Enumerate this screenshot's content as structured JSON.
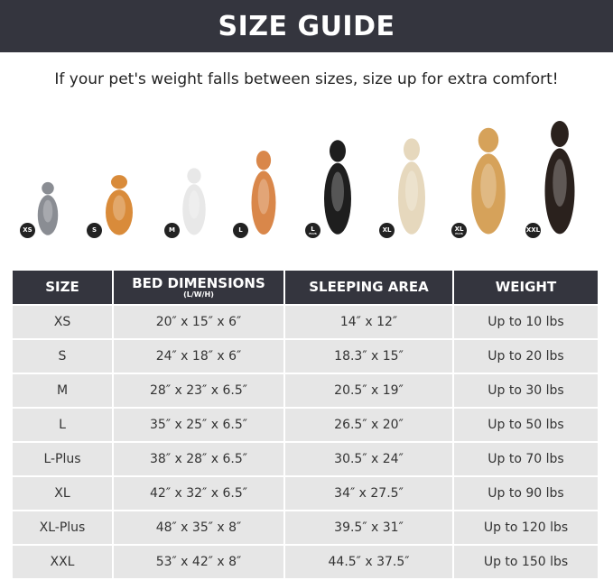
{
  "title": "SIZE GUIDE",
  "subtitle": "If your pet's weight falls between sizes, size up for extra comfort!",
  "pets": [
    {
      "badge": "XS",
      "plus": "",
      "icon": "cat-icon",
      "color": "#8a8d93"
    },
    {
      "badge": "S",
      "plus": "",
      "icon": "pomeranian-icon",
      "color": "#d98b3a"
    },
    {
      "badge": "M",
      "plus": "",
      "icon": "french-bulldog-icon",
      "color": "#e8e8e8"
    },
    {
      "badge": "L",
      "plus": "",
      "icon": "shiba-inu-icon",
      "color": "#d9874a"
    },
    {
      "badge": "L",
      "plus": "PLUS",
      "icon": "border-collie-icon",
      "color": "#1e1e1e"
    },
    {
      "badge": "XL",
      "plus": "",
      "icon": "labrador-icon",
      "color": "#e6d8bd"
    },
    {
      "badge": "XL",
      "plus": "PLUS",
      "icon": "golden-retriever-icon",
      "color": "#d6a25a"
    },
    {
      "badge": "XXL",
      "plus": "",
      "icon": "doberman-icon",
      "color": "#2a211d"
    }
  ],
  "table": {
    "headers": [
      "SIZE",
      "BED DIMENSIONS",
      "SLEEPING AREA",
      "WEIGHT"
    ],
    "header_sub": "(L/W/H)",
    "rows": [
      [
        "XS",
        "20″ x 15″ x 6″",
        "14″ x 12″",
        "Up to 10 lbs"
      ],
      [
        "S",
        "24″ x 18″ x 6″",
        "18.3″ x 15″",
        "Up to 20 lbs"
      ],
      [
        "M",
        "28″ x 23″ x 6.5″",
        "20.5″ x 19″",
        "Up to 30 lbs"
      ],
      [
        "L",
        "35″ x 25″ x 6.5″",
        "26.5″ x 20″",
        "Up to 50 lbs"
      ],
      [
        "L-Plus",
        "38″ x 28″ x 6.5″",
        "30.5″ x 24″",
        "Up to 70 lbs"
      ],
      [
        "XL",
        "42″ x 32″ x 6.5″",
        "34″ x 27.5″",
        "Up to 90 lbs"
      ],
      [
        "XL-Plus",
        "48″ x 35″ x 8″",
        "39.5″ x 31″",
        "Up to 120 lbs"
      ],
      [
        "XXL",
        "53″ x 42″ x 8″",
        "44.5″ x 37.5″",
        "Up to 150 lbs"
      ]
    ]
  }
}
